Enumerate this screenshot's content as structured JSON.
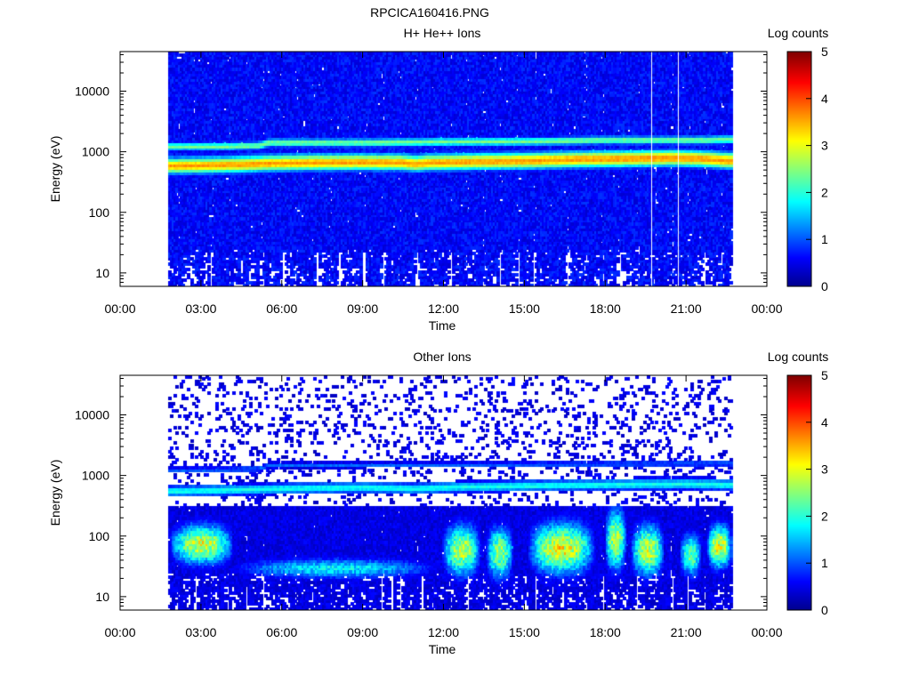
{
  "figure_title": "RPCICA160416.PNG",
  "chart_data": [
    {
      "type": "heatmap",
      "title": "H+ He++ Ions",
      "xlabel": "Time",
      "ylabel": "Energy (eV)",
      "y_scale": "log",
      "x_domain_hours": [
        0,
        24
      ],
      "ylim": [
        6,
        45000
      ],
      "data_span_hours": [
        1.8,
        22.7
      ],
      "x_ticks": [
        "00:00",
        "03:00",
        "06:00",
        "09:00",
        "12:00",
        "15:00",
        "18:00",
        "21:00",
        "00:00"
      ],
      "y_ticks": [
        {
          "value": 10,
          "label": "10"
        },
        {
          "value": 100,
          "label": "100"
        },
        {
          "value": 1000,
          "label": "1000"
        },
        {
          "value": 10000,
          "label": "10000"
        }
      ],
      "colorbar": {
        "label": "Log counts",
        "range": [
          0,
          5
        ],
        "ticks": [
          "0",
          "1",
          "2",
          "3",
          "4",
          "5"
        ]
      },
      "background_level": 0.6,
      "background_noise": 0.25,
      "low_energy_gaps": true,
      "data_gap_lines_hours": [
        19.7,
        20.7
      ],
      "bands": [
        {
          "name": "H+ main",
          "peak_log_counts": 3.6,
          "width_decades": 0.09,
          "center_trace": [
            [
              1.8,
              600
            ],
            [
              3.0,
              610
            ],
            [
              4.5,
              630
            ],
            [
              5.5,
              660
            ],
            [
              7.0,
              680
            ],
            [
              9.0,
              690
            ],
            [
              10.5,
              680
            ],
            [
              11.0,
              650
            ],
            [
              11.5,
              680
            ],
            [
              13.0,
              700
            ],
            [
              15.0,
              720
            ],
            [
              17.0,
              760
            ],
            [
              19.0,
              780
            ],
            [
              20.5,
              800
            ],
            [
              21.5,
              780
            ],
            [
              22.7,
              720
            ]
          ]
        },
        {
          "name": "He++",
          "peak_log_counts": 2.4,
          "width_decades": 0.05,
          "center_trace": [
            [
              1.8,
              1250
            ],
            [
              4.0,
              1250
            ],
            [
              5.2,
              1300
            ],
            [
              5.5,
              1450
            ],
            [
              9.0,
              1450
            ],
            [
              12.0,
              1500
            ],
            [
              15.0,
              1520
            ],
            [
              18.0,
              1600
            ],
            [
              21.7,
              1600
            ],
            [
              22.7,
              1650
            ]
          ]
        }
      ],
      "blobs": []
    },
    {
      "type": "heatmap",
      "title": "Other Ions",
      "xlabel": "Time",
      "ylabel": "Energy (eV)",
      "y_scale": "log",
      "x_domain_hours": [
        0,
        24
      ],
      "ylim": [
        6,
        45000
      ],
      "data_span_hours": [
        1.8,
        22.7
      ],
      "x_ticks": [
        "00:00",
        "03:00",
        "06:00",
        "09:00",
        "12:00",
        "15:00",
        "18:00",
        "21:00",
        "00:00"
      ],
      "y_ticks": [
        {
          "value": 10,
          "label": "10"
        },
        {
          "value": 100,
          "label": "100"
        },
        {
          "value": 1000,
          "label": "1000"
        },
        {
          "value": 10000,
          "label": "10000"
        }
      ],
      "colorbar": {
        "label": "Log counts",
        "range": [
          0,
          5
        ],
        "ticks": [
          "0",
          "1",
          "2",
          "3",
          "4",
          "5"
        ]
      },
      "background_level": 0.45,
      "background_noise": 0.2,
      "sparse_above_ev": 300,
      "sparse_fraction": 0.12,
      "low_energy_gaps": true,
      "data_gap_lines_hours": [],
      "bands": [
        {
          "name": "heavy main",
          "peak_log_counts": 1.9,
          "width_decades": 0.06,
          "center_trace": [
            [
              1.8,
              560
            ],
            [
              4.0,
              590
            ],
            [
              6.0,
              620
            ],
            [
              9.0,
              650
            ],
            [
              11.0,
              620
            ],
            [
              12.5,
              660
            ],
            [
              15.0,
              690
            ],
            [
              18.0,
              720
            ],
            [
              21.0,
              740
            ],
            [
              22.7,
              720
            ]
          ]
        },
        {
          "name": "heavy upper",
          "peak_log_counts": 1.1,
          "width_decades": 0.03,
          "center_trace": [
            [
              1.8,
              1250
            ],
            [
              5.2,
              1300
            ],
            [
              5.5,
              1500
            ],
            [
              22.7,
              1600
            ]
          ]
        }
      ],
      "blobs": [
        {
          "t": [
            1.9,
            4.2
          ],
          "ev_center": 75,
          "ev_halfwidth_dec": 0.23,
          "peak_log_counts": 3.0
        },
        {
          "t": [
            4.2,
            11.8
          ],
          "ev_center": 30,
          "ev_halfwidth_dec": 0.12,
          "peak_log_counts": 1.8
        },
        {
          "t": [
            12.0,
            13.4
          ],
          "ev_center": 60,
          "ev_halfwidth_dec": 0.3,
          "peak_log_counts": 2.8
        },
        {
          "t": [
            13.6,
            14.6
          ],
          "ev_center": 55,
          "ev_halfwidth_dec": 0.3,
          "peak_log_counts": 2.6
        },
        {
          "t": [
            15.2,
            17.6
          ],
          "ev_center": 65,
          "ev_halfwidth_dec": 0.3,
          "peak_log_counts": 3.1
        },
        {
          "t": [
            18.0,
            18.8
          ],
          "ev_center": 90,
          "ev_halfwidth_dec": 0.35,
          "peak_log_counts": 2.8
        },
        {
          "t": [
            19.0,
            20.2
          ],
          "ev_center": 60,
          "ev_halfwidth_dec": 0.3,
          "peak_log_counts": 2.9
        },
        {
          "t": [
            20.8,
            21.6
          ],
          "ev_center": 50,
          "ev_halfwidth_dec": 0.25,
          "peak_log_counts": 2.4
        },
        {
          "t": [
            21.8,
            22.7
          ],
          "ev_center": 70,
          "ev_halfwidth_dec": 0.25,
          "peak_log_counts": 3.1
        }
      ]
    }
  ]
}
